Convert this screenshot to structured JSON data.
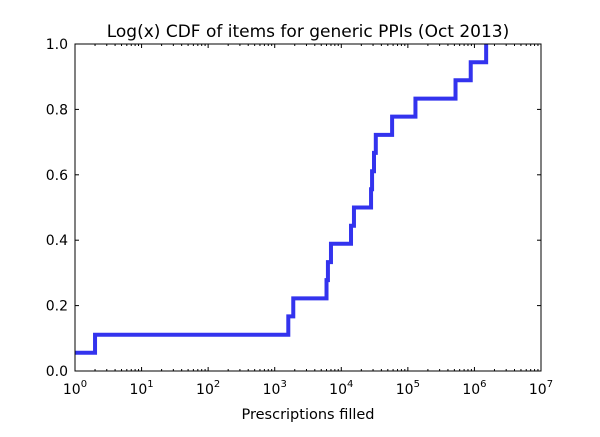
{
  "chart_data": {
    "type": "line",
    "title": "Log(x) CDF of items for generic PPIs (Oct 2013)",
    "xlabel": "Prescriptions filled",
    "ylabel": "",
    "x_scale": "log",
    "xlim": [
      1,
      10000000
    ],
    "ylim": [
      0,
      1.0
    ],
    "grid": false,
    "x_ticks": [
      {
        "value": 1,
        "base": "10",
        "exp": "0"
      },
      {
        "value": 10,
        "base": "10",
        "exp": "1"
      },
      {
        "value": 100,
        "base": "10",
        "exp": "2"
      },
      {
        "value": 1000,
        "base": "10",
        "exp": "3"
      },
      {
        "value": 10000,
        "base": "10",
        "exp": "4"
      },
      {
        "value": 100000,
        "base": "10",
        "exp": "5"
      },
      {
        "value": 1000000,
        "base": "10",
        "exp": "6"
      },
      {
        "value": 10000000,
        "base": "10",
        "exp": "7"
      }
    ],
    "y_ticks": [
      {
        "value": 0.0,
        "label": "0.0"
      },
      {
        "value": 0.2,
        "label": "0.2"
      },
      {
        "value": 0.4,
        "label": "0.4"
      },
      {
        "value": 0.6,
        "label": "0.6"
      },
      {
        "value": 0.8,
        "label": "0.8"
      },
      {
        "value": 1.0,
        "label": "1.0"
      }
    ],
    "series": [
      {
        "color": "#3333ee",
        "style": "step",
        "x": [
          1,
          2,
          1600,
          1900,
          6000,
          6300,
          6600,
          7000,
          14000,
          15500,
          28000,
          29000,
          31000,
          33000,
          34000,
          58000,
          130000,
          520000,
          880000,
          1500000
        ],
        "y": [
          0.056,
          0.111,
          0.167,
          0.222,
          0.278,
          0.333,
          0.333,
          0.389,
          0.444,
          0.5,
          0.556,
          0.611,
          0.667,
          0.722,
          0.722,
          0.778,
          0.833,
          0.889,
          0.944,
          1.0
        ]
      }
    ]
  }
}
